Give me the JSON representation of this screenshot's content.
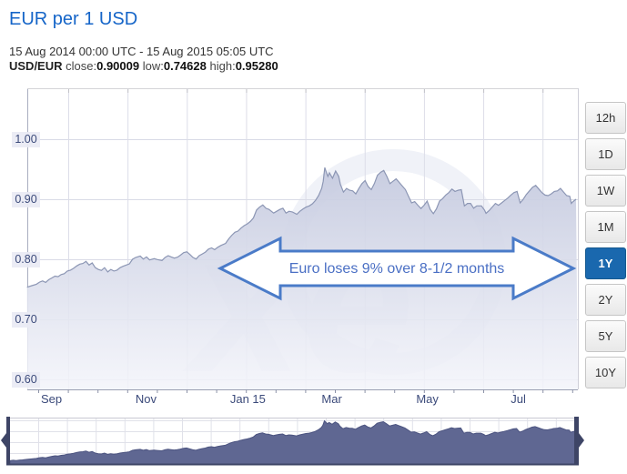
{
  "header": {
    "title": "EUR per 1 USD",
    "date_range": "15 Aug 2014 00:00 UTC - 15 Aug 2015 05:05 UTC",
    "stats": {
      "pair": "USD/EUR",
      "close_label": "close:",
      "close_value": "0.90009",
      "low_label": "low:",
      "low_value": "0.74628",
      "high_label": "high:",
      "high_value": "0.95280"
    }
  },
  "range_buttons": {
    "items": [
      "12h",
      "1D",
      "1W",
      "1M",
      "1Y",
      "2Y",
      "5Y",
      "10Y"
    ],
    "selected": "1Y"
  },
  "watermark": "xe",
  "colors": {
    "title_blue": "#1565c8",
    "axis_text": "#3b4a7a",
    "grid": "#dcdde8",
    "line": "#8c96b4",
    "area_fill_top": "#c5cadf",
    "area_fill_bottom": "#f3f4fa",
    "navigator_fill": "#5f6792",
    "navigator_edge": "#3e4566",
    "arrow_stroke": "#4a7bc8",
    "arrow_text": "#4a6fc4",
    "selected_button_bg": "#1a68ae"
  },
  "chart_data": {
    "type": "area",
    "title": "EUR per 1 USD",
    "xlabel": "",
    "ylabel": "EUR per 1 USD",
    "x_unit": "days since 15 Aug 2014 (0 = 15 Aug 2014, 365 = 15 Aug 2015)",
    "xlim": [
      0,
      365
    ],
    "ylim": [
      0.58,
      1.085
    ],
    "yticks": [
      1.0,
      0.9,
      0.8,
      0.7,
      0.6
    ],
    "ytick_labels": [
      "1.00",
      "0.90",
      "0.80",
      "0.70",
      "0.60"
    ],
    "xticks": [
      {
        "label": "Sep",
        "day": 17
      },
      {
        "label": "Nov",
        "day": 78
      },
      {
        "label": "Jan 15",
        "day": 139
      },
      {
        "label": "Mar",
        "day": 198
      },
      {
        "label": "May",
        "day": 259
      },
      {
        "label": "Jul",
        "day": 320
      }
    ],
    "annotation": "Euro loses 9% over 8-1/2 months",
    "grid": true,
    "legend": "none",
    "navigator": true,
    "series": [
      {
        "name": "USD/EUR",
        "points": [
          [
            0,
            0.7465
          ],
          [
            2,
            0.749
          ],
          [
            4,
            0.7472
          ],
          [
            6,
            0.7495
          ],
          [
            8,
            0.751
          ],
          [
            11,
            0.7535
          ],
          [
            14,
            0.756
          ],
          [
            17,
            0.7585
          ],
          [
            19,
            0.762
          ],
          [
            21,
            0.764
          ],
          [
            23,
            0.7615
          ],
          [
            25,
            0.766
          ],
          [
            27,
            0.769
          ],
          [
            29,
            0.772
          ],
          [
            31,
            0.771
          ],
          [
            33,
            0.7745
          ],
          [
            35,
            0.776
          ],
          [
            37,
            0.7805
          ],
          [
            39,
            0.782
          ],
          [
            41,
            0.785
          ],
          [
            43,
            0.789
          ],
          [
            45,
            0.792
          ],
          [
            47,
            0.793
          ],
          [
            49,
            0.7965
          ],
          [
            51,
            0.7905
          ],
          [
            53,
            0.794
          ],
          [
            55,
            0.786
          ],
          [
            57,
            0.783
          ],
          [
            59,
            0.7815
          ],
          [
            61,
            0.786
          ],
          [
            63,
            0.779
          ],
          [
            65,
            0.783
          ],
          [
            67,
            0.7805
          ],
          [
            69,
            0.782
          ],
          [
            71,
            0.786
          ],
          [
            73,
            0.7885
          ],
          [
            75,
            0.7905
          ],
          [
            77,
            0.7925
          ],
          [
            79,
            0.8
          ],
          [
            81,
            0.803
          ],
          [
            84,
            0.8055
          ],
          [
            86,
            0.8005
          ],
          [
            88,
            0.804
          ],
          [
            90,
            0.799
          ],
          [
            93,
            0.801
          ],
          [
            95,
            0.7995
          ],
          [
            98,
            0.798
          ],
          [
            100,
            0.803
          ],
          [
            102,
            0.806
          ],
          [
            104,
            0.804
          ],
          [
            106,
            0.802
          ],
          [
            108,
            0.8035
          ],
          [
            110,
            0.807
          ],
          [
            112,
            0.811
          ],
          [
            114,
            0.8125
          ],
          [
            116,
            0.808
          ],
          [
            118,
            0.803
          ],
          [
            120,
            0.8005
          ],
          [
            122,
            0.806
          ],
          [
            124,
            0.809
          ],
          [
            126,
            0.812
          ],
          [
            128,
            0.817
          ],
          [
            130,
            0.819
          ],
          [
            132,
            0.816
          ],
          [
            134,
            0.82
          ],
          [
            136,
            0.823
          ],
          [
            139,
            0.8265
          ],
          [
            141,
            0.834
          ],
          [
            143,
            0.84
          ],
          [
            145,
            0.845
          ],
          [
            147,
            0.847
          ],
          [
            149,
            0.852
          ],
          [
            151,
            0.856
          ],
          [
            153,
            0.859
          ],
          [
            155,
            0.863
          ],
          [
            157,
            0.869
          ],
          [
            159,
            0.882
          ],
          [
            161,
            0.887
          ],
          [
            163,
            0.8905
          ],
          [
            165,
            0.885
          ],
          [
            167,
            0.883
          ],
          [
            170,
            0.877
          ],
          [
            172,
            0.88
          ],
          [
            174,
            0.883
          ],
          [
            176,
            0.885
          ],
          [
            178,
            0.877
          ],
          [
            180,
            0.88
          ],
          [
            182,
            0.879
          ],
          [
            185,
            0.875
          ],
          [
            187,
            0.88
          ],
          [
            189,
            0.884
          ],
          [
            191,
            0.887
          ],
          [
            193,
            0.889
          ],
          [
            195,
            0.8925
          ],
          [
            197,
            0.898
          ],
          [
            199,
            0.906
          ],
          [
            201,
            0.918
          ],
          [
            202,
            0.93
          ],
          [
            203,
            0.9528
          ],
          [
            204,
            0.945
          ],
          [
            205,
            0.938
          ],
          [
            206,
            0.944
          ],
          [
            208,
            0.935
          ],
          [
            210,
            0.947
          ],
          [
            212,
            0.938
          ],
          [
            213,
            0.925
          ],
          [
            215,
            0.912
          ],
          [
            217,
            0.918
          ],
          [
            219,
            0.915
          ],
          [
            221,
            0.914
          ],
          [
            223,
            0.909
          ],
          [
            225,
            0.918
          ],
          [
            227,
            0.926
          ],
          [
            229,
            0.931
          ],
          [
            231,
            0.921
          ],
          [
            233,
            0.916
          ],
          [
            235,
            0.926
          ],
          [
            237,
            0.94
          ],
          [
            239,
            0.945
          ],
          [
            241,
            0.948
          ],
          [
            243,
            0.938
          ],
          [
            245,
            0.926
          ],
          [
            247,
            0.93
          ],
          [
            249,
            0.934
          ],
          [
            251,
            0.928
          ],
          [
            253,
            0.922
          ],
          [
            255,
            0.916
          ],
          [
            257,
            0.905
          ],
          [
            259,
            0.894
          ],
          [
            261,
            0.896
          ],
          [
            263,
            0.89
          ],
          [
            265,
            0.8845
          ],
          [
            267,
            0.89
          ],
          [
            269,
            0.897
          ],
          [
            271,
            0.883
          ],
          [
            273,
            0.876
          ],
          [
            275,
            0.884
          ],
          [
            277,
            0.897
          ],
          [
            279,
            0.901
          ],
          [
            281,
            0.907
          ],
          [
            283,
            0.911
          ],
          [
            285,
            0.917
          ],
          [
            287,
            0.913
          ],
          [
            289,
            0.915
          ],
          [
            291,
            0.916
          ],
          [
            293,
            0.889
          ],
          [
            295,
            0.893
          ],
          [
            297,
            0.893
          ],
          [
            299,
            0.885
          ],
          [
            301,
            0.889
          ],
          [
            304,
            0.889
          ],
          [
            306,
            0.882
          ],
          [
            307,
            0.8765
          ],
          [
            309,
            0.881
          ],
          [
            311,
            0.887
          ],
          [
            313,
            0.893
          ],
          [
            315,
            0.89
          ],
          [
            317,
            0.894
          ],
          [
            319,
            0.898
          ],
          [
            321,
            0.902
          ],
          [
            323,
            0.907
          ],
          [
            325,
            0.911
          ],
          [
            327,
            0.913
          ],
          [
            329,
            0.894
          ],
          [
            331,
            0.9
          ],
          [
            333,
            0.908
          ],
          [
            335,
            0.914
          ],
          [
            337,
            0.92
          ],
          [
            339,
            0.923
          ],
          [
            341,
            0.917
          ],
          [
            343,
            0.911
          ],
          [
            345,
            0.907
          ],
          [
            347,
            0.906
          ],
          [
            349,
            0.909
          ],
          [
            351,
            0.913
          ],
          [
            353,
            0.914
          ],
          [
            355,
            0.918
          ],
          [
            357,
            0.912
          ],
          [
            359,
            0.906
          ],
          [
            361,
            0.905
          ],
          [
            362,
            0.893
          ],
          [
            363,
            0.896
          ],
          [
            365,
            0.9
          ]
        ]
      }
    ]
  }
}
